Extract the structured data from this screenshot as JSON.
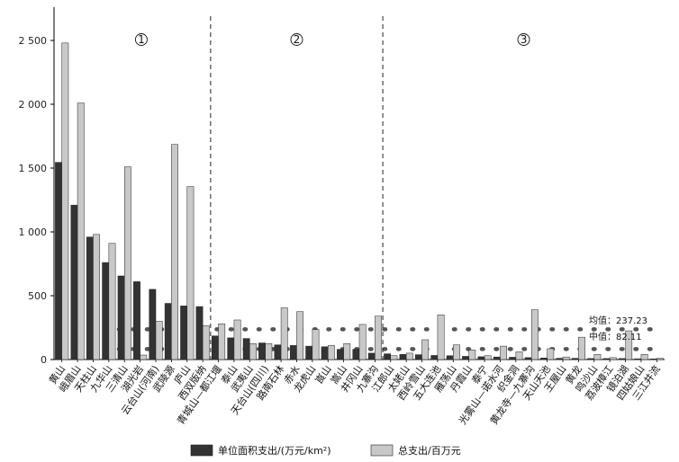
{
  "chart_data": {
    "type": "bar",
    "title": "",
    "xlabel": "",
    "ylabel": "",
    "ylim": [
      0,
      2800
    ],
    "yticks": [
      0,
      500,
      1000,
      1500,
      2000,
      2500
    ],
    "ytick_labels": [
      "0",
      "500",
      "1 000",
      "1 500",
      "2 000",
      "2 500"
    ],
    "categories": [
      "黄山",
      "峨眉山",
      "天柱山",
      "九华山",
      "三清山",
      "湖光岩",
      "云台山(河南)",
      "武陵源",
      "庐山",
      "西双版纳",
      "青城山—都江堰",
      "泰山",
      "武夷山",
      "天台山(四川)",
      "路南石林",
      "赤水",
      "龙虎山",
      "崀山",
      "嵩山",
      "井冈山",
      "九寨沟",
      "江郎山",
      "太姥山",
      "西岭雪山",
      "五大连池",
      "雁荡山",
      "丹霞山",
      "泰宁",
      "光雾山—诺水河",
      "织金洞",
      "黄龙寺—九寨沟",
      "天山天池",
      "王屋山",
      "黄龙",
      "鸣沙山",
      "荔波樟江",
      "镜泊湖",
      "四姑娘山",
      "三江并流"
    ],
    "series": [
      {
        "name": "单位面积支出/(万元/km²)",
        "color": "#333333",
        "values": [
          1545,
          1210,
          960,
          760,
          655,
          610,
          550,
          440,
          420,
          415,
          185,
          170,
          165,
          130,
          115,
          110,
          105,
          100,
          80,
          80,
          50,
          45,
          40,
          38,
          32,
          30,
          25,
          22,
          20,
          18,
          15,
          12,
          10,
          10,
          8,
          8,
          8,
          6,
          5
        ]
      },
      {
        "name": "总支出/百万元",
        "color": "#c8c8c8",
        "values": [
          2480,
          2010,
          980,
          910,
          1510,
          35,
          300,
          1685,
          1355,
          265,
          280,
          310,
          125,
          125,
          405,
          375,
          235,
          110,
          125,
          275,
          340,
          30,
          50,
          155,
          350,
          115,
          75,
          30,
          105,
          60,
          390,
          85,
          20,
          175,
          40,
          15,
          225,
          40,
          10
        ]
      }
    ],
    "reference_lines": [
      {
        "label": "均值：237.23",
        "value": 237.23
      },
      {
        "label": "中值：82.11",
        "value": 82.11
      }
    ],
    "regions": [
      {
        "label": "①",
        "from_index": 0,
        "to_index": 9
      },
      {
        "label": "②",
        "from_index": 10,
        "to_index": 20
      },
      {
        "label": "③",
        "from_index": 21,
        "to_index": 38
      }
    ],
    "legend_position": "bottom",
    "grid": false
  },
  "colors": {
    "series_dark": "#333333",
    "series_light": "#c8c8c8",
    "axis": "#000000",
    "reference_dots": "#555555"
  }
}
